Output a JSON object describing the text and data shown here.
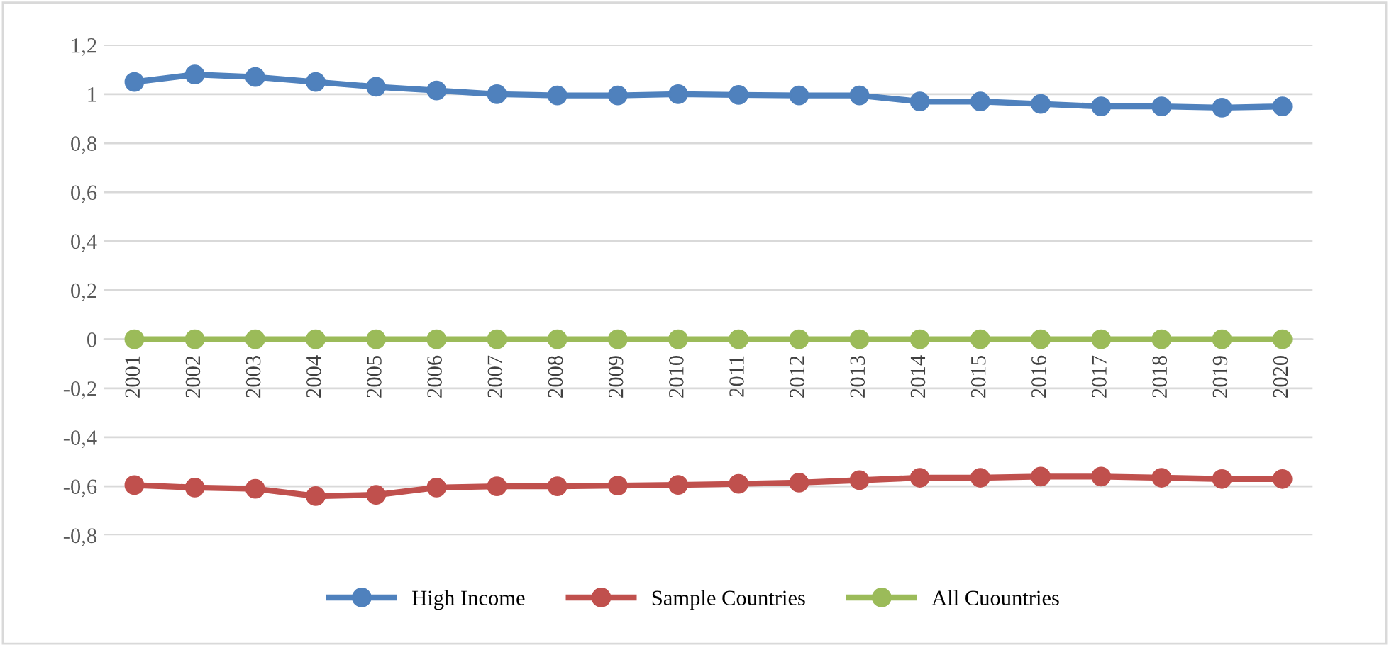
{
  "chart_data": {
    "type": "line",
    "categories": [
      "2001",
      "2002",
      "2003",
      "2004",
      "2005",
      "2006",
      "2007",
      "2008",
      "2009",
      "2010",
      "2011",
      "2012",
      "2013",
      "2014",
      "2015",
      "2016",
      "2017",
      "2018",
      "2019",
      "2020"
    ],
    "series": [
      {
        "name": "High Income",
        "color": "#4f81bd",
        "values": [
          1.05,
          1.08,
          1.07,
          1.05,
          1.03,
          1.015,
          1.0,
          0.995,
          0.995,
          1.0,
          0.997,
          0.995,
          0.995,
          0.97,
          0.97,
          0.96,
          0.95,
          0.95,
          0.945,
          0.95
        ]
      },
      {
        "name": "Sample Countries",
        "color": "#c0504d",
        "values": [
          -0.595,
          -0.605,
          -0.61,
          -0.64,
          -0.635,
          -0.605,
          -0.6,
          -0.6,
          -0.597,
          -0.594,
          -0.59,
          -0.585,
          -0.575,
          -0.565,
          -0.565,
          -0.56,
          -0.56,
          -0.565,
          -0.57,
          -0.57
        ]
      },
      {
        "name": "All Cuountries",
        "color": "#9bbb59",
        "values": [
          0,
          0,
          0,
          0,
          0,
          0,
          0,
          0,
          0,
          0,
          0,
          0,
          0,
          0,
          0,
          0,
          0,
          0,
          0,
          0
        ]
      }
    ],
    "ylim": [
      -0.8,
      1.2
    ],
    "yticks": [
      {
        "value": -0.8,
        "label": "-0,8"
      },
      {
        "value": -0.6,
        "label": "-0,6"
      },
      {
        "value": -0.4,
        "label": "-0,4"
      },
      {
        "value": -0.2,
        "label": "-0,2"
      },
      {
        "value": 0,
        "label": "0"
      },
      {
        "value": 0.2,
        "label": "0,2"
      },
      {
        "value": 0.4,
        "label": "0,4"
      },
      {
        "value": 0.6,
        "label": "0,6"
      },
      {
        "value": 0.8,
        "label": "0,8"
      },
      {
        "value": 1,
        "label": "1"
      },
      {
        "value": 1.2,
        "label": "1,2"
      }
    ],
    "grid": "y",
    "legend": "bottom",
    "marker": "circle",
    "line_style": "solid"
  }
}
